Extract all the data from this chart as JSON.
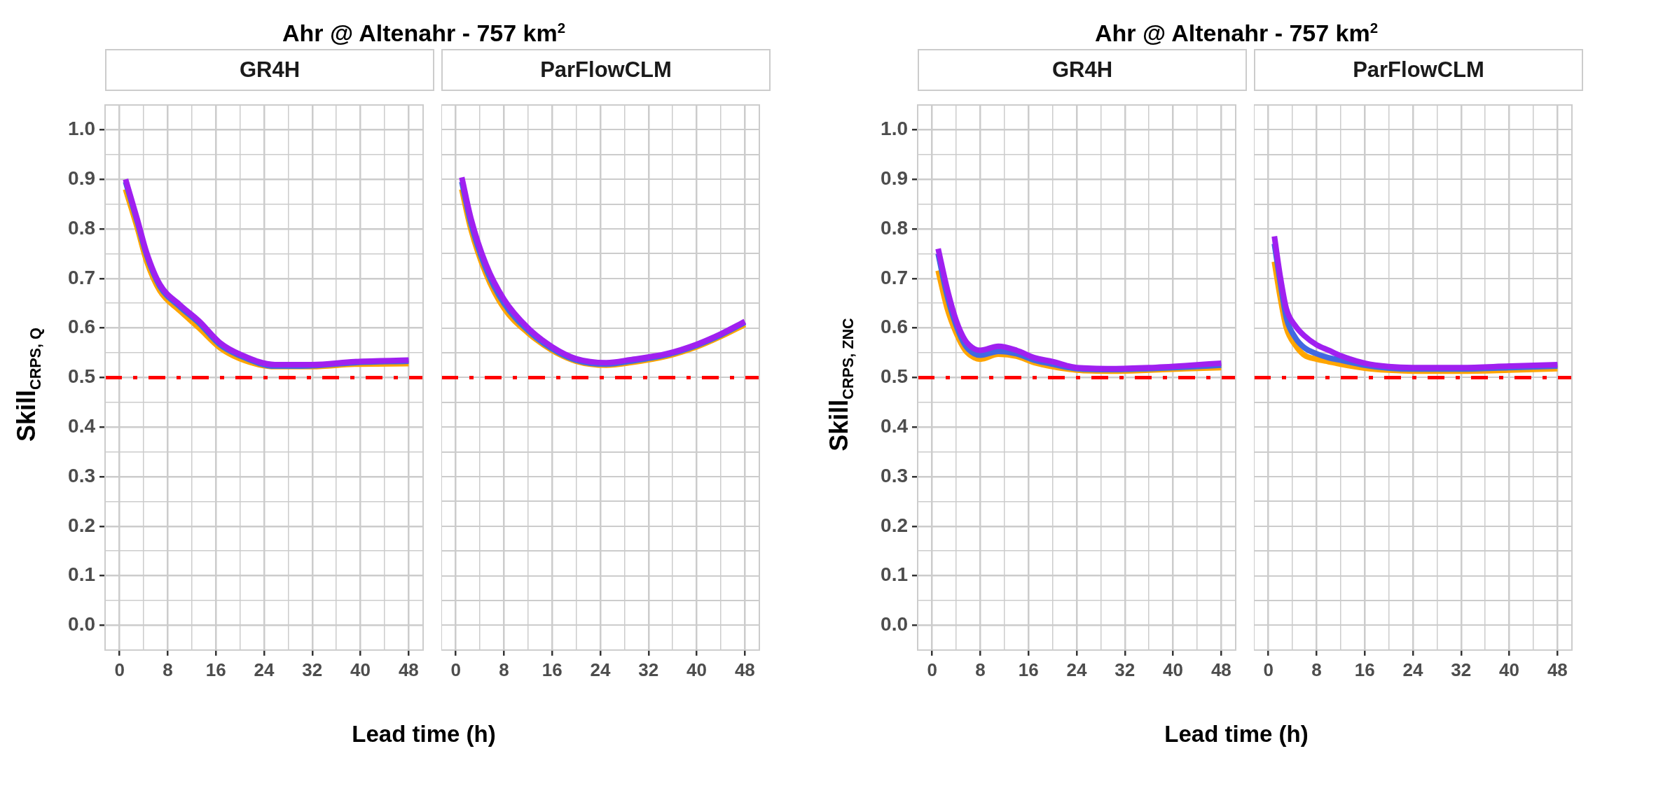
{
  "chart_data": [
    {
      "type": "line",
      "title": "Ahr @ Altenahr - 757 km$^{2}$",
      "subtitle": "GR4H",
      "xlabel": "Lead time (h)",
      "ylabel": "Skill$_{CRPS, Q}$",
      "xlim": [
        -2.4,
        50.4
      ],
      "ylim": [
        -0.05,
        1.05
      ],
      "xticks": [
        0,
        {
          "value": 4,
          "label": null
        },
        8,
        {
          "value": 12,
          "label": null
        },
        16,
        {
          "value": 20,
          "label": null
        },
        24,
        {
          "value": 28,
          "label": null
        },
        32,
        {
          "value": 36,
          "label": null
        },
        40,
        {
          "value": 44,
          "label": null
        },
        48
      ],
      "yticks": [
        {
          "value": 0,
          "label": "0.0"
        },
        {
          "value": 0.05,
          "label": null
        },
        0.1,
        {
          "value": 0.15,
          "label": null
        },
        0.2,
        {
          "value": 0.25,
          "label": null
        },
        0.3,
        {
          "value": 0.35,
          "label": null
        },
        0.4,
        {
          "value": 0.45,
          "label": null
        },
        0.5,
        {
          "value": 0.55,
          "label": null
        },
        0.6,
        {
          "value": 0.65,
          "label": null
        },
        0.7,
        {
          "value": 0.75,
          "label": null
        },
        0.8,
        {
          "value": 0.85,
          "label": null
        },
        0.9,
        {
          "value": 0.95,
          "label": null
        },
        {
          "value": 1,
          "label": "1.0"
        }
      ],
      "grid": true,
      "ref_lines": [
        {
          "axis": "y",
          "value": 0.5,
          "color": "#ff0000",
          "line_style": "dashdot"
        }
      ],
      "series": [
        {
          "color": "#ffa500",
          "x": [
            1,
            3,
            4.5,
            6.7,
            10,
            13.2,
            16.7,
            20,
            25.8,
            32,
            39,
            48
          ],
          "values": [
            0.88,
            0.8,
            0.735,
            0.675,
            0.635,
            0.6,
            0.56,
            0.538,
            0.522,
            0.522,
            0.527,
            0.528
          ]
        },
        {
          "color": "#4169e1",
          "x": [
            1,
            3,
            4.5,
            6.7,
            10,
            13.2,
            16.7,
            20,
            25.8,
            32,
            39,
            48
          ],
          "values": [
            0.895,
            0.812,
            0.747,
            0.684,
            0.643,
            0.61,
            0.566,
            0.544,
            0.523,
            0.524,
            0.53,
            0.533
          ]
        },
        {
          "color": "#a020f0",
          "x": [
            1,
            3,
            4.5,
            6.7,
            10,
            13.2,
            16.7,
            20,
            25.8,
            32,
            39,
            48
          ],
          "values": [
            0.9,
            0.817,
            0.752,
            0.688,
            0.647,
            0.614,
            0.57,
            0.547,
            0.526,
            0.526,
            0.532,
            0.535
          ]
        }
      ]
    },
    {
      "type": "line",
      "subtitle": "ParFlowCLM",
      "tick_labels": "x",
      "xlim": [
        -2.4,
        50.4
      ],
      "ylim": [
        -0.05,
        1.05
      ],
      "xticks": [
        0,
        {
          "value": 4,
          "label": null
        },
        8,
        {
          "value": 12,
          "label": null
        },
        16,
        {
          "value": 20,
          "label": null
        },
        24,
        {
          "value": 28,
          "label": null
        },
        32,
        {
          "value": 36,
          "label": null
        },
        40,
        {
          "value": 44,
          "label": null
        },
        48
      ],
      "yticks": [
        0,
        0.05,
        0.1,
        0.15,
        0.2,
        0.25,
        0.3,
        0.35,
        0.4,
        0.45,
        0.5,
        0.55,
        0.6,
        0.65,
        0.7,
        0.75,
        0.8,
        0.85,
        0.9,
        0.95,
        1
      ],
      "grid": true,
      "ref_lines": [
        {
          "axis": "y",
          "value": 0.5,
          "color": "#ff0000",
          "line_style": "dashdot"
        }
      ],
      "series": [
        {
          "color": "#ffa500",
          "x": [
            1,
            2.5,
            5,
            8,
            12,
            16,
            20,
            25,
            29,
            35,
            40,
            44,
            48
          ],
          "values": [
            0.88,
            0.8,
            0.71,
            0.64,
            0.59,
            0.555,
            0.533,
            0.525,
            0.53,
            0.543,
            0.562,
            0.583,
            0.607
          ]
        },
        {
          "color": "#4169e1",
          "x": [
            1,
            2.5,
            5,
            8,
            12,
            16,
            20,
            25,
            29,
            35,
            40,
            44,
            48
          ],
          "values": [
            0.895,
            0.812,
            0.72,
            0.65,
            0.595,
            0.558,
            0.535,
            0.527,
            0.533,
            0.546,
            0.565,
            0.586,
            0.611
          ]
        },
        {
          "color": "#a020f0",
          "x": [
            1,
            2.5,
            5,
            8,
            12,
            16,
            20,
            25,
            29,
            35,
            40,
            44,
            48
          ],
          "values": [
            0.904,
            0.822,
            0.729,
            0.658,
            0.6,
            0.562,
            0.538,
            0.53,
            0.536,
            0.548,
            0.567,
            0.588,
            0.613
          ]
        }
      ]
    },
    {
      "type": "line",
      "title": "Ahr @ Altenahr - 757 km$^{2}$",
      "subtitle": "GR4H",
      "xlabel": "Lead time (h)",
      "ylabel": "Skill$_{CRPS, ZNC}$",
      "xlim": [
        -2.4,
        50.4
      ],
      "ylim": [
        -0.05,
        1.05
      ],
      "xticks": [
        0,
        {
          "value": 4,
          "label": null
        },
        8,
        {
          "value": 12,
          "label": null
        },
        16,
        {
          "value": 20,
          "label": null
        },
        24,
        {
          "value": 28,
          "label": null
        },
        32,
        {
          "value": 36,
          "label": null
        },
        40,
        {
          "value": 44,
          "label": null
        },
        48
      ],
      "yticks": [
        {
          "value": 0,
          "label": "0.0"
        },
        {
          "value": 0.05,
          "label": null
        },
        0.1,
        {
          "value": 0.15,
          "label": null
        },
        0.2,
        {
          "value": 0.25,
          "label": null
        },
        0.3,
        {
          "value": 0.35,
          "label": null
        },
        0.4,
        {
          "value": 0.45,
          "label": null
        },
        0.5,
        {
          "value": 0.55,
          "label": null
        },
        0.6,
        {
          "value": 0.65,
          "label": null
        },
        0.7,
        {
          "value": 0.75,
          "label": null
        },
        0.8,
        {
          "value": 0.85,
          "label": null
        },
        0.9,
        {
          "value": 0.95,
          "label": null
        },
        {
          "value": 1,
          "label": "1.0"
        }
      ],
      "grid": true,
      "ref_lines": [
        {
          "axis": "y",
          "value": 0.5,
          "color": "#ff0000",
          "line_style": "dashdot"
        }
      ],
      "series": [
        {
          "color": "#ffa500",
          "x": [
            1,
            2.5,
            4,
            5.5,
            7,
            8,
            11,
            14,
            17,
            20,
            24,
            30,
            36,
            42,
            48
          ],
          "values": [
            0.716,
            0.64,
            0.59,
            0.555,
            0.54,
            0.537,
            0.547,
            0.543,
            0.53,
            0.522,
            0.515,
            0.513,
            0.515,
            0.518,
            0.52
          ]
        },
        {
          "color": "#4169e1",
          "x": [
            1,
            2.5,
            4,
            5.5,
            7,
            8,
            11,
            14,
            17,
            20,
            24,
            30,
            36,
            42,
            48
          ],
          "values": [
            0.75,
            0.665,
            0.605,
            0.565,
            0.548,
            0.545,
            0.553,
            0.548,
            0.535,
            0.527,
            0.518,
            0.516,
            0.518,
            0.521,
            0.525
          ]
        },
        {
          "color": "#a020f0",
          "x": [
            1,
            2.5,
            4,
            5.5,
            7,
            8,
            11,
            14,
            17,
            20,
            24,
            30,
            36,
            42,
            48
          ],
          "values": [
            0.76,
            0.679,
            0.615,
            0.575,
            0.558,
            0.555,
            0.563,
            0.555,
            0.54,
            0.532,
            0.52,
            0.518,
            0.52,
            0.524,
            0.529
          ]
        }
      ]
    },
    {
      "type": "line",
      "subtitle": "ParFlowCLM",
      "tick_labels": "x",
      "xlim": [
        -2.4,
        50.4
      ],
      "ylim": [
        -0.05,
        1.05
      ],
      "xticks": [
        0,
        {
          "value": 4,
          "label": null
        },
        8,
        {
          "value": 12,
          "label": null
        },
        16,
        {
          "value": 20,
          "label": null
        },
        24,
        {
          "value": 28,
          "label": null
        },
        32,
        {
          "value": 36,
          "label": null
        },
        40,
        {
          "value": 44,
          "label": null
        },
        48
      ],
      "yticks": [
        0,
        0.05,
        0.1,
        0.15,
        0.2,
        0.25,
        0.3,
        0.35,
        0.4,
        0.45,
        0.5,
        0.55,
        0.6,
        0.65,
        0.7,
        0.75,
        0.8,
        0.85,
        0.9,
        0.95,
        1
      ],
      "grid": true,
      "ref_lines": [
        {
          "axis": "y",
          "value": 0.5,
          "color": "#ff0000",
          "line_style": "dashdot"
        }
      ],
      "series": [
        {
          "color": "#ffa500",
          "x": [
            1,
            2,
            3,
            4.5,
            6,
            8,
            10,
            12,
            16,
            20,
            24,
            32,
            40,
            48
          ],
          "values": [
            0.734,
            0.66,
            0.6,
            0.565,
            0.545,
            0.537,
            0.532,
            0.527,
            0.519,
            0.515,
            0.513,
            0.513,
            0.515,
            0.518
          ]
        },
        {
          "color": "#4169e1",
          "x": [
            1,
            2,
            3,
            4.5,
            6,
            8,
            10,
            12,
            16,
            20,
            24,
            32,
            40,
            48
          ],
          "values": [
            0.77,
            0.69,
            0.62,
            0.58,
            0.56,
            0.548,
            0.54,
            0.535,
            0.525,
            0.519,
            0.517,
            0.517,
            0.52,
            0.523
          ]
        },
        {
          "color": "#a020f0",
          "x": [
            1,
            2,
            3,
            4.5,
            6,
            8,
            10,
            12,
            16,
            20,
            24,
            32,
            40,
            48
          ],
          "values": [
            0.785,
            0.702,
            0.638,
            0.604,
            0.584,
            0.566,
            0.555,
            0.544,
            0.529,
            0.522,
            0.52,
            0.52,
            0.523,
            0.526
          ]
        }
      ]
    }
  ]
}
